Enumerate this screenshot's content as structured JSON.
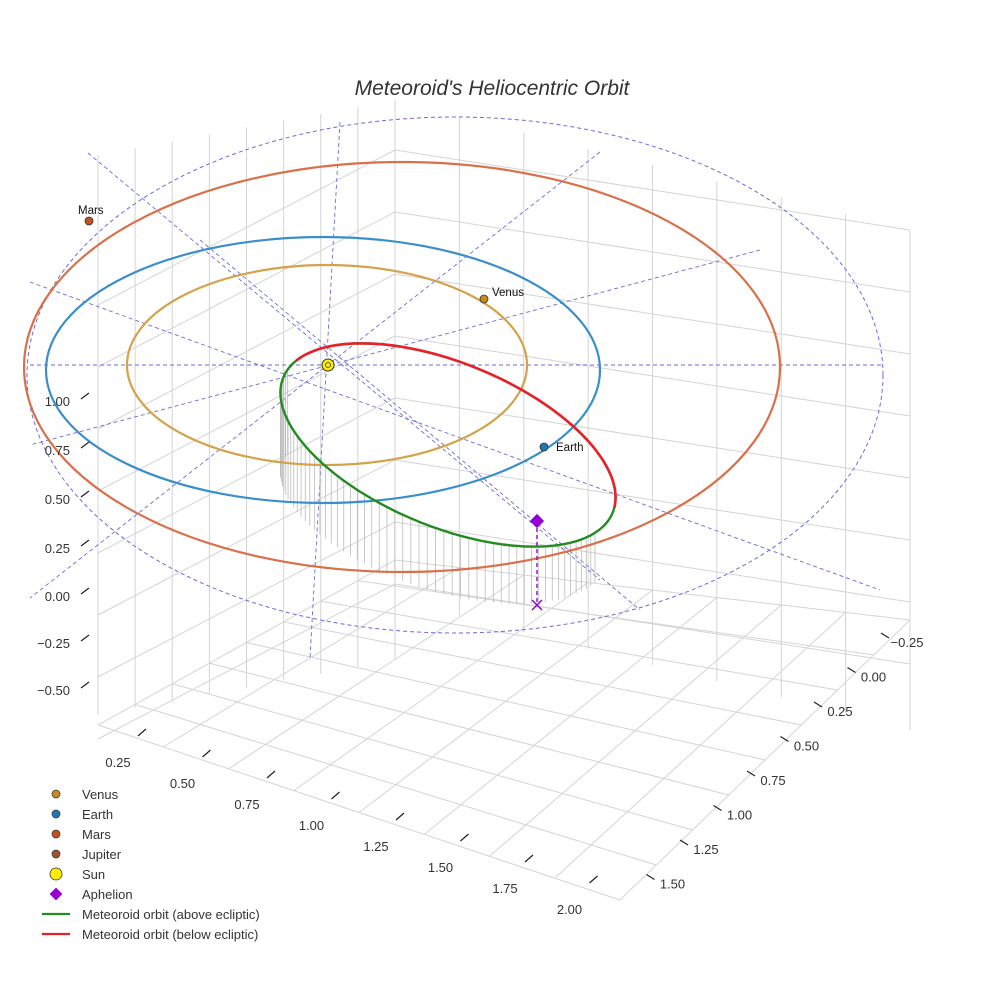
{
  "chart_data": {
    "type": "scatter",
    "projection": "3d",
    "title": "Meteoroid's Heliocentric Orbit",
    "axes": {
      "x": {
        "ticks": [
          "0.25",
          "0.50",
          "0.75",
          "1.00",
          "1.25",
          "1.50",
          "1.75",
          "2.00"
        ]
      },
      "y": {
        "ticks": [
          "−0.25",
          "0.00",
          "0.25",
          "0.50",
          "0.75",
          "1.00",
          "1.25",
          "1.50"
        ]
      },
      "z": {
        "ticks": [
          "−0.50",
          "−0.25",
          "0.00",
          "0.25",
          "0.50",
          "0.75",
          "1.00"
        ]
      }
    },
    "grid": true,
    "ecliptic_reference_grid": "dashed",
    "planets": [
      {
        "name": "Venus",
        "label": "Venus",
        "orbit_radius_au": 0.72,
        "color": "#c98a1c",
        "orbit_color": "#d4a24a"
      },
      {
        "name": "Earth",
        "label": "Earth",
        "orbit_radius_au": 1.0,
        "color": "#1f77b4",
        "orbit_color": "#3b8fc9"
      },
      {
        "name": "Mars",
        "label": "Mars",
        "orbit_radius_au": 1.52,
        "color": "#c4501a",
        "orbit_color": "#d9704a"
      },
      {
        "name": "Jupiter",
        "color": "#a0522d"
      }
    ],
    "sun": {
      "name": "Sun",
      "color": "#ffee00"
    },
    "aphelion": {
      "name": "Aphelion",
      "color": "#9400d3"
    },
    "meteoroid_orbit": {
      "above": {
        "name": "Meteoroid orbit (above ecliptic)",
        "color": "#228b22"
      },
      "below": {
        "name": "Meteoroid orbit (below ecliptic)",
        "color": "#e8202a"
      }
    },
    "legend": {
      "placement": "bottom-left",
      "entries": [
        {
          "label": "Venus",
          "marker": "circle",
          "color": "#c98a1c"
        },
        {
          "label": "Earth",
          "marker": "circle",
          "color": "#1f77b4"
        },
        {
          "label": "Mars",
          "marker": "circle",
          "color": "#c4501a"
        },
        {
          "label": "Jupiter",
          "marker": "circle",
          "color": "#a0522d"
        },
        {
          "label": "Sun",
          "marker": "circle-large",
          "color": "#ffee00"
        },
        {
          "label": "Aphelion",
          "marker": "diamond",
          "color": "#9400d3"
        },
        {
          "label": "Meteoroid orbit (above ecliptic)",
          "marker": "line",
          "color": "#228b22"
        },
        {
          "label": "Meteoroid orbit (below ecliptic)",
          "marker": "line",
          "color": "#e8202a"
        }
      ]
    }
  }
}
